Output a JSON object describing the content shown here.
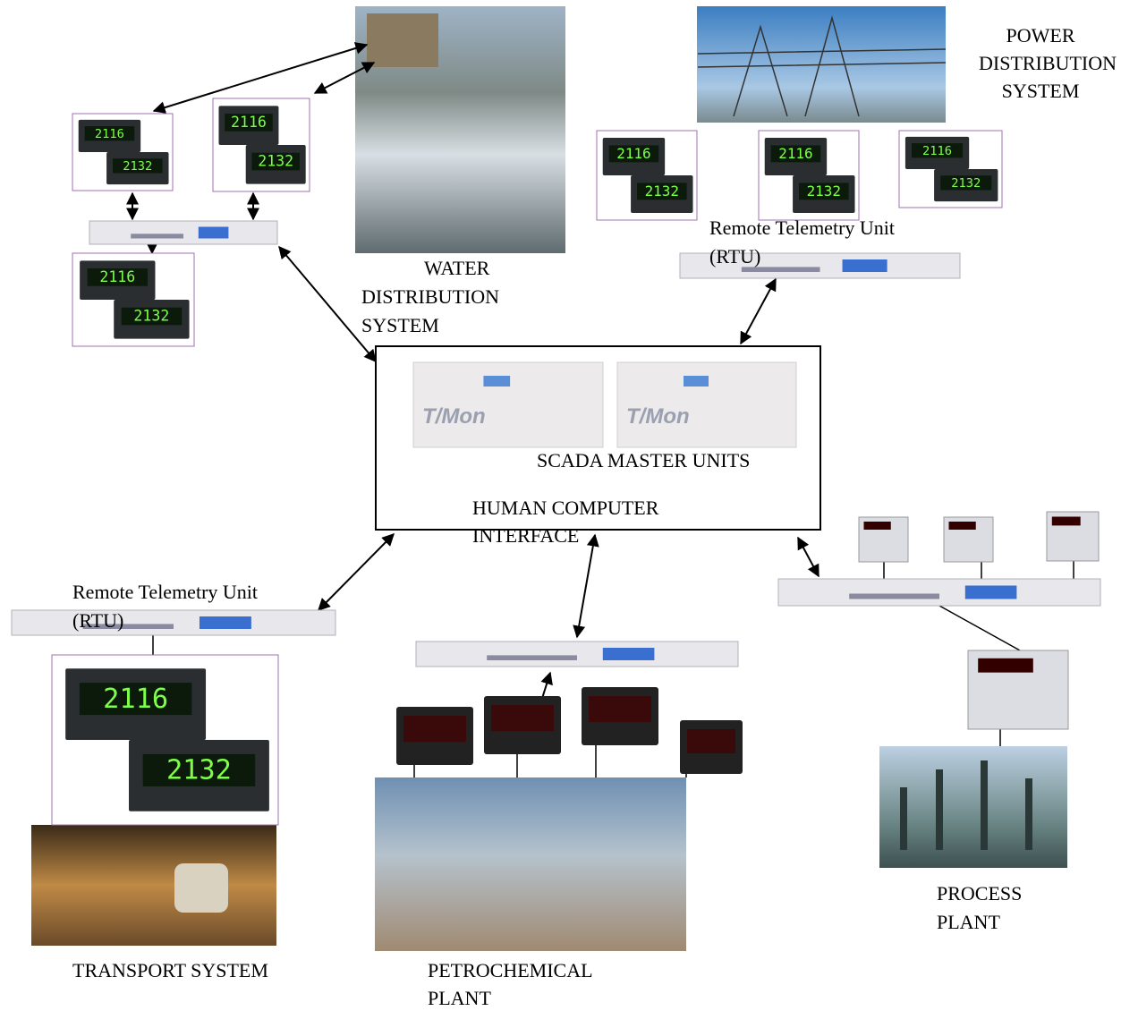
{
  "labels": {
    "power": [
      "POWER",
      "DISTRIBUTION",
      "SYSTEM"
    ],
    "water": [
      "WATER",
      "DISTRIBUTION",
      "SYSTEM"
    ],
    "rtu_top": [
      "Remote Telemetry Unit",
      "(RTU)"
    ],
    "rtu_left": [
      "Remote Telemetry Unit",
      "(RTU)"
    ],
    "master": "SCADA MASTER UNITS",
    "hci": [
      "HUMAN COMPUTER",
      "INTERFACE"
    ],
    "transport": "TRANSPORT SYSTEM",
    "petrochemical": [
      "PETROCHEMICAL",
      "PLANT"
    ],
    "process": [
      "PROCESS",
      "PLANT"
    ]
  },
  "devices": {
    "controller_top": "2116",
    "controller_bottom": "2132",
    "master_unit": "T/Mon"
  }
}
